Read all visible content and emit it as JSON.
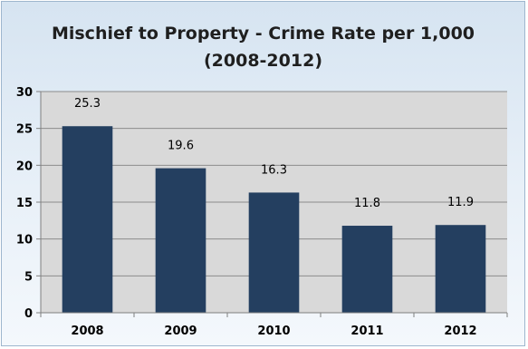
{
  "chart_data": {
    "type": "bar",
    "title": "Mischief to Property - Crime Rate per 1,000\n(2008-2012)",
    "categories": [
      "2008",
      "2009",
      "2010",
      "2011",
      "2012"
    ],
    "values": [
      25.3,
      19.6,
      16.3,
      11.8,
      11.9
    ],
    "data_labels": [
      "25.3",
      "19.6",
      "16.3",
      "11.8",
      "11.9"
    ],
    "xlabel": "",
    "ylabel": "",
    "ylim": [
      0,
      30
    ],
    "yticks": [
      "0",
      "5",
      "10",
      "15",
      "20",
      "25",
      "30"
    ],
    "grid": true,
    "legend": "none",
    "bar_color": "#243f60",
    "plot_background": "#d9d9d9",
    "gridline_color": "#8c8c8c"
  }
}
